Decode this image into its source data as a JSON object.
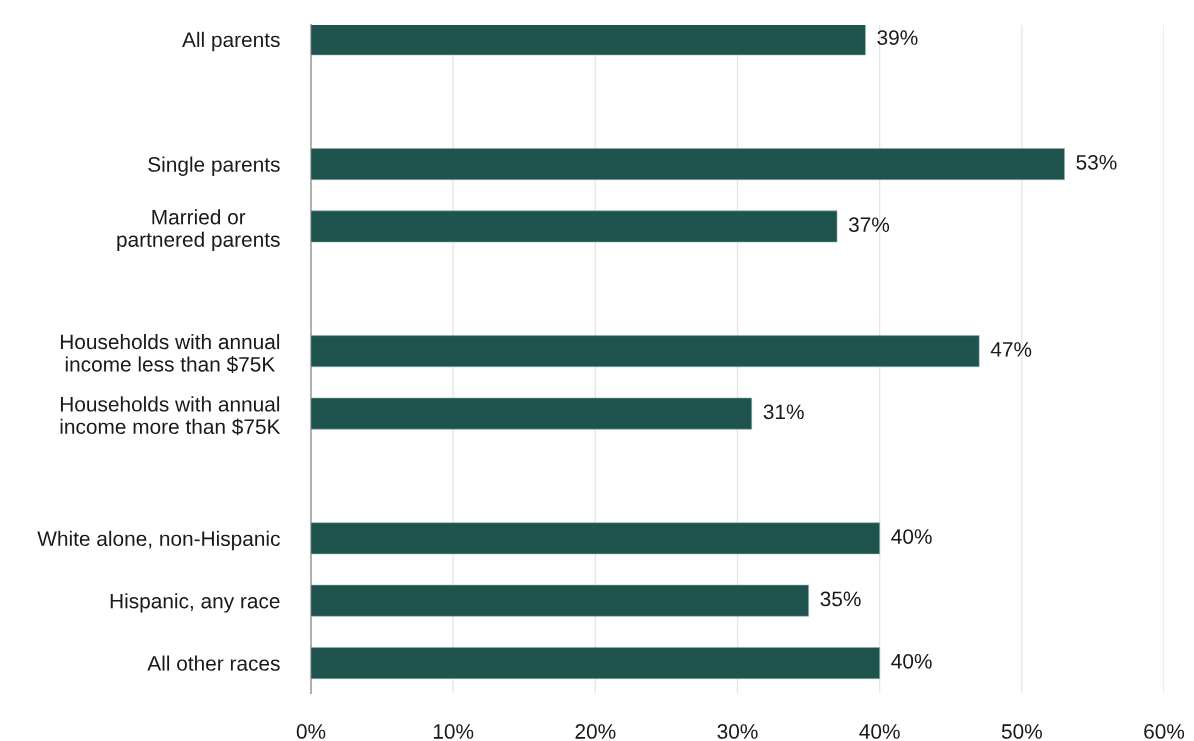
{
  "chart_data": {
    "type": "bar",
    "orientation": "horizontal",
    "categories": [
      "All parents",
      null,
      "Single parents",
      "Married or\npartnered parents",
      null,
      "Households with annual\nincome less than $75K",
      "Households with annual\nincome more than $75K",
      null,
      "White alone, non-Hispanic",
      "Hispanic, any race",
      "All other races"
    ],
    "values": [
      39,
      null,
      53,
      37,
      null,
      47,
      31,
      null,
      40,
      35,
      40
    ],
    "color": "#1e534e",
    "xlim": [
      0,
      60
    ],
    "xticks": [
      {
        "value": 0,
        "label": "0%"
      },
      {
        "value": 10,
        "label": "10%"
      },
      {
        "value": 20,
        "label": "20%"
      },
      {
        "value": 30,
        "label": "30%"
      },
      {
        "value": 40,
        "label": "40%"
      },
      {
        "value": 50,
        "label": "50%"
      },
      {
        "value": 60,
        "label": "60%"
      }
    ],
    "value_labels": [
      "39%",
      null,
      "53%",
      "37%",
      null,
      "47%",
      "31%",
      null,
      "40%",
      "35%",
      "40%"
    ],
    "grid": "x",
    "legend": false
  }
}
